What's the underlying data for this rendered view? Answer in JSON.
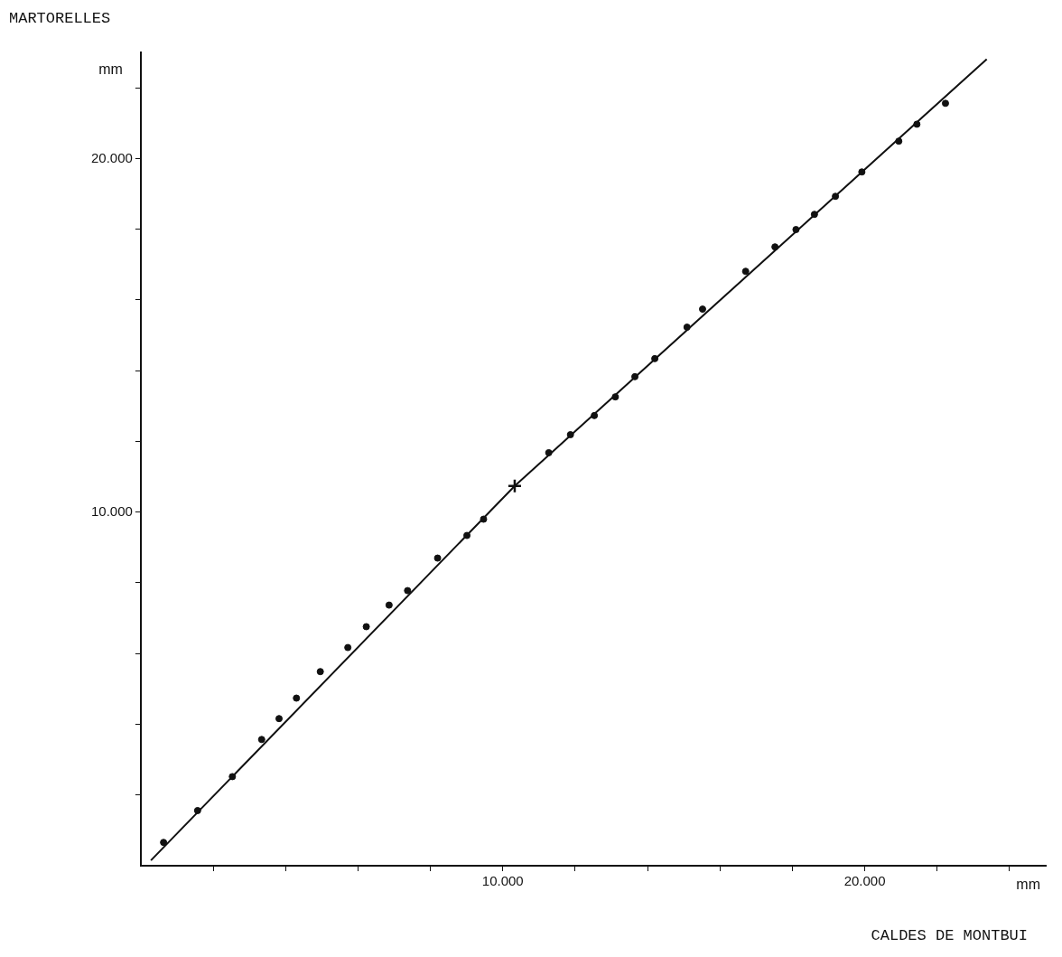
{
  "chart_data": {
    "type": "scatter",
    "ylabel": "MARTORELLES",
    "xlabel": "CALDES DE MONTBUI",
    "annotations": [
      "mm",
      "mm"
    ],
    "xlim": [
      0,
      25000
    ],
    "ylim": [
      0,
      23000
    ],
    "xticks": [
      {
        "value": 2000,
        "label": null
      },
      {
        "value": 4000,
        "label": null
      },
      {
        "value": 6000,
        "label": null
      },
      {
        "value": 8000,
        "label": null
      },
      {
        "value": 10000,
        "label": "10.000"
      },
      {
        "value": 12000,
        "label": null
      },
      {
        "value": 14000,
        "label": null
      },
      {
        "value": 16000,
        "label": null
      },
      {
        "value": 18000,
        "label": null
      },
      {
        "value": 20000,
        "label": "20.000"
      },
      {
        "value": 22000,
        "label": null
      },
      {
        "value": 24000,
        "label": null
      }
    ],
    "yticks": [
      {
        "value": 2000,
        "label": null
      },
      {
        "value": 4000,
        "label": null
      },
      {
        "value": 6000,
        "label": null
      },
      {
        "value": 8000,
        "label": null
      },
      {
        "value": 10000,
        "label": "10.000"
      },
      {
        "value": 12000,
        "label": null
      },
      {
        "value": 14000,
        "label": null
      },
      {
        "value": 16000,
        "label": null
      },
      {
        "value": 18000,
        "label": null
      },
      {
        "value": 20000,
        "label": "20.000"
      },
      {
        "value": 22000,
        "label": null
      }
    ],
    "grid": false,
    "legend": false,
    "series": [
      {
        "marker": "circle",
        "color": "#111111",
        "x": [
          630,
          1570,
          2530,
          3340,
          3820,
          4300,
          4960,
          5720,
          6230,
          6860,
          7370,
          8200,
          9010,
          9470,
          11270,
          11870,
          12530,
          13110,
          13650,
          14200,
          15090,
          15520,
          16710,
          17520,
          18100,
          18610,
          19190,
          19920,
          20940,
          21440,
          22230
        ],
        "values": [
          660,
          1560,
          2520,
          3570,
          4160,
          4740,
          5490,
          6170,
          6760,
          7370,
          7780,
          8700,
          9340,
          9800,
          11680,
          12190,
          12730,
          13260,
          13830,
          14340,
          15230,
          15740,
          16810,
          17500,
          17990,
          18420,
          18930,
          19620,
          20490,
          20970,
          21560
        ]
      },
      {
        "marker": "cross",
        "color": "#111111",
        "x": [
          10330
        ],
        "values": [
          10740
        ]
      },
      {
        "type": "line",
        "marker": "none",
        "line_style": "solid",
        "color": "#111111",
        "x": [
          280,
          10330,
          23370
        ],
        "values": [
          150,
          10740,
          22810
        ]
      }
    ]
  }
}
